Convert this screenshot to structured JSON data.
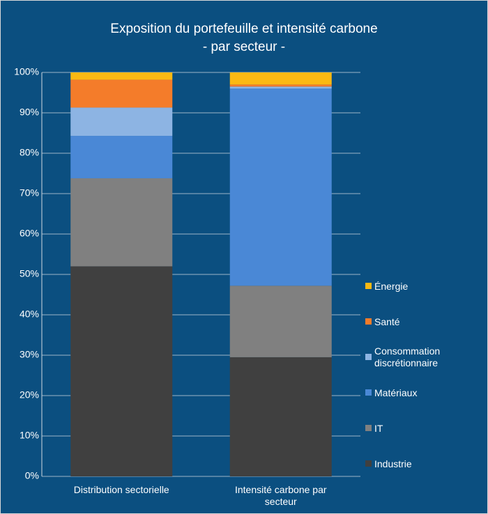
{
  "chart_data": {
    "type": "stacked_bar_100",
    "title": "Exposition du portefeuille et intensité carbone",
    "subtitle": "- par secteur -",
    "categories": [
      "Distribution sectorielle",
      "Intensité carbone par secteur"
    ],
    "series": [
      {
        "name": "Industrie",
        "color": "#404040",
        "values": [
          52,
          29.5
        ]
      },
      {
        "name": "IT",
        "color": "#808080",
        "values": [
          21.8,
          17.7
        ]
      },
      {
        "name": "Matériaux",
        "color": "#4a88d6",
        "values": [
          10.5,
          48.8
        ]
      },
      {
        "name": "Consommation discrétionnaire",
        "color": "#8db4e3",
        "values": [
          7,
          0.5
        ]
      },
      {
        "name": "Santé",
        "color": "#f47c2a",
        "values": [
          6.9,
          0.5
        ]
      },
      {
        "name": "Énergie",
        "color": "#fbb913",
        "values": [
          1.8,
          3
        ]
      }
    ],
    "ylim": [
      0,
      100
    ],
    "yticks": [
      {
        "value": 0,
        "label": "0%"
      },
      {
        "value": 10,
        "label": "10%"
      },
      {
        "value": 20,
        "label": "20%"
      },
      {
        "value": 30,
        "label": "30%"
      },
      {
        "value": 40,
        "label": "40%"
      },
      {
        "value": 50,
        "label": "50%"
      },
      {
        "value": 60,
        "label": "60%"
      },
      {
        "value": 70,
        "label": "70%"
      },
      {
        "value": 80,
        "label": "80%"
      },
      {
        "value": 90,
        "label": "90%"
      },
      {
        "value": 100,
        "label": "100%"
      }
    ],
    "grid": true,
    "legend": "right"
  }
}
